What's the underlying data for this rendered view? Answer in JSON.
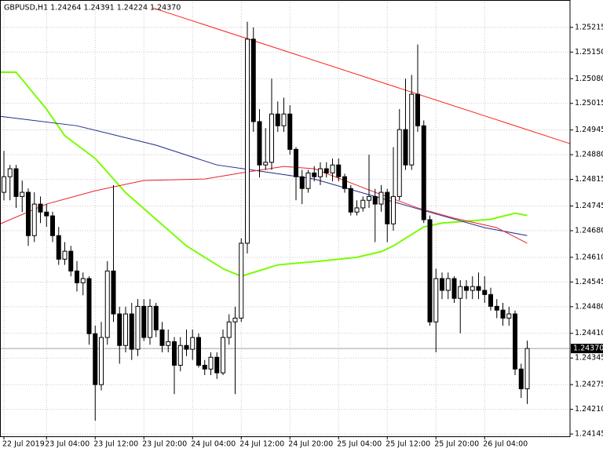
{
  "chart_data": {
    "type": "candlestick",
    "title": "GBPUSD,H1  1.24264 1.24391 1.24224 1.24370",
    "xlim": [
      -0.645,
      93.032
    ],
    "ylim": [
      1.24139,
      1.25287
    ],
    "grid": true,
    "bull_color": "#ffffff",
    "bear_color": "#000000",
    "xticks": [
      {
        "value": 0,
        "label": "22 Jul 2019"
      },
      {
        "value": 7,
        "label": "23 Jul 04:00"
      },
      {
        "value": 15,
        "label": "23 Jul 12:00"
      },
      {
        "value": 23,
        "label": "23 Jul 20:00"
      },
      {
        "value": 31,
        "label": "24 Jul 04:00"
      },
      {
        "value": 39,
        "label": "24 Jul 12:00"
      },
      {
        "value": 47,
        "label": "24 Jul 20:00"
      },
      {
        "value": 55,
        "label": "25 Jul 04:00"
      },
      {
        "value": 63,
        "label": "25 Jul 12:00"
      },
      {
        "value": 71,
        "label": "25 Jul 20:00"
      },
      {
        "value": 79,
        "label": "26 Jul 04:00"
      }
    ],
    "yticks": [
      1.25215,
      {
        "value": 1.2515,
        "label": "1.25150"
      },
      {
        "value": 1.2508,
        "label": "1.25080"
      },
      1.25015,
      1.24945,
      {
        "value": 1.2488,
        "label": "1.24880"
      },
      1.24815,
      1.24745,
      {
        "value": 1.2468,
        "label": "1.24680"
      },
      {
        "value": 1.2461,
        "label": "1.24610"
      },
      1.24545,
      {
        "value": 1.2448,
        "label": "1.24480"
      },
      {
        "value": 1.2441,
        "label": "1.24410"
      },
      1.24345,
      1.24275,
      {
        "value": 1.2421,
        "label": "1.24210"
      },
      1.24145
    ],
    "current_price": {
      "value": 1.2437,
      "label": "1.24370"
    },
    "ohlc": [
      [
        1.24781,
        1.2489,
        1.2476,
        1.24822
      ],
      [
        1.24822,
        1.24853,
        1.2476,
        1.24843
      ],
      [
        1.24843,
        1.24853,
        1.2474,
        1.2477
      ],
      [
        1.2477,
        1.24812,
        1.24729,
        1.24781
      ],
      [
        1.24781,
        1.24791,
        1.2464,
        1.24667
      ],
      [
        1.24667,
        1.24781,
        1.2465,
        1.2475
      ],
      [
        1.2475,
        1.2477,
        1.247,
        1.24729
      ],
      [
        1.24729,
        1.2475,
        1.2469,
        1.24719
      ],
      [
        1.24719,
        1.2473,
        1.2465,
        1.24667
      ],
      [
        1.24667,
        1.2469,
        1.2459,
        1.24605
      ],
      [
        1.24605,
        1.2465,
        1.2459,
        1.24626
      ],
      [
        1.24626,
        1.2464,
        1.2456,
        1.24574
      ],
      [
        1.24574,
        1.246,
        1.2452,
        1.24543
      ],
      [
        1.24543,
        1.2457,
        1.2451,
        1.24554
      ],
      [
        1.24554,
        1.2456,
        1.2438,
        1.24409
      ],
      [
        1.24409,
        1.2443,
        1.2418,
        1.24275
      ],
      [
        1.24275,
        1.2444,
        1.2426,
        1.24399
      ],
      [
        1.24399,
        1.246,
        1.2438,
        1.24574
      ],
      [
        1.24574,
        1.248,
        1.2444,
        1.24461
      ],
      [
        1.24461,
        1.2448,
        1.2433,
        1.24378
      ],
      [
        1.24378,
        1.2448,
        1.2436,
        1.24461
      ],
      [
        1.24461,
        1.2449,
        1.2434,
        1.24368
      ],
      [
        1.24368,
        1.245,
        1.2435,
        1.24481
      ],
      [
        1.24481,
        1.245,
        1.2439,
        1.24399
      ],
      [
        1.24399,
        1.245,
        1.2438,
        1.24481
      ],
      [
        1.24481,
        1.2449,
        1.244,
        1.24419
      ],
      [
        1.24419,
        1.2444,
        1.2436,
        1.24378
      ],
      [
        1.24378,
        1.2442,
        1.2436,
        1.24388
      ],
      [
        1.24388,
        1.244,
        1.2425,
        1.24326
      ],
      [
        1.24326,
        1.244,
        1.2431,
        1.24378
      ],
      [
        1.24378,
        1.2442,
        1.2435,
        1.24368
      ],
      [
        1.24368,
        1.2442,
        1.2434,
        1.24399
      ],
      [
        1.24399,
        1.2441,
        1.2432,
        1.24326
      ],
      [
        1.24326,
        1.2434,
        1.243,
        1.24316
      ],
      [
        1.24316,
        1.2436,
        1.243,
        1.24347
      ],
      [
        1.24347,
        1.2436,
        1.2429,
        1.24306
      ],
      [
        1.24306,
        1.2442,
        1.243,
        1.24399
      ],
      [
        1.24399,
        1.2446,
        1.2438,
        1.2444
      ],
      [
        1.2444,
        1.2448,
        1.2425,
        1.2445
      ],
      [
        1.2445,
        1.2466,
        1.2444,
        1.24647
      ],
      [
        1.24647,
        1.2523,
        1.2462,
        1.25184
      ],
      [
        1.25184,
        1.25215,
        1.2494,
        1.24967
      ],
      [
        1.24967,
        1.25,
        1.2482,
        1.24853
      ],
      [
        1.24853,
        1.2495,
        1.2484,
        1.2486
      ],
      [
        1.2486,
        1.2508,
        1.2484,
        1.24987
      ],
      [
        1.24987,
        1.2502,
        1.2494,
        1.24956
      ],
      [
        1.24956,
        1.2503,
        1.2494,
        1.24987
      ],
      [
        1.24987,
        1.2501,
        1.2488,
        1.24894
      ],
      [
        1.24894,
        1.249,
        1.2476,
        1.24822
      ],
      [
        1.24822,
        1.2484,
        1.2475,
        1.24791
      ],
      [
        1.24791,
        1.2484,
        1.2478,
        1.24832
      ],
      [
        1.24832,
        1.2485,
        1.2481,
        1.24822
      ],
      [
        1.24822,
        1.2486,
        1.248,
        1.24843
      ],
      [
        1.24843,
        1.2486,
        1.2482,
        1.24832
      ],
      [
        1.24832,
        1.2487,
        1.2481,
        1.24853
      ],
      [
        1.24853,
        1.2487,
        1.2481,
        1.24822
      ],
      [
        1.24822,
        1.2483,
        1.2478,
        1.24791
      ],
      [
        1.24791,
        1.248,
        1.2472,
        1.24729
      ],
      [
        1.24729,
        1.2476,
        1.2472,
        1.2474
      ],
      [
        1.2474,
        1.2477,
        1.2473,
        1.2476
      ],
      [
        1.2476,
        1.2488,
        1.2474,
        1.2477
      ],
      [
        1.2477,
        1.2479,
        1.2465,
        1.2475
      ],
      [
        1.2475,
        1.248,
        1.2473,
        1.24781
      ],
      [
        1.24781,
        1.2479,
        1.2465,
        1.24698
      ],
      [
        1.24698,
        1.249,
        1.2468,
        1.2477
      ],
      [
        1.2477,
        1.25,
        1.2476,
        1.24946
      ],
      [
        1.24946,
        1.2508,
        1.2484,
        1.24853
      ],
      [
        1.24853,
        1.2509,
        1.2484,
        1.25039
      ],
      [
        1.25039,
        1.2517,
        1.2494,
        1.24956
      ],
      [
        1.24956,
        1.2497,
        1.247,
        1.24709
      ],
      [
        1.24709,
        1.2472,
        1.2443,
        1.2444
      ],
      [
        1.2444,
        1.2458,
        1.2436,
        1.24554
      ],
      [
        1.24554,
        1.2457,
        1.245,
        1.24523
      ],
      [
        1.24523,
        1.2457,
        1.245,
        1.24554
      ],
      [
        1.24554,
        1.2456,
        1.2449,
        1.24502
      ],
      [
        1.24502,
        1.2455,
        1.2441,
        1.24533
      ],
      [
        1.24533,
        1.2455,
        1.245,
        1.24523
      ],
      [
        1.24523,
        1.2456,
        1.245,
        1.24533
      ],
      [
        1.24533,
        1.2457,
        1.245,
        1.24523
      ],
      [
        1.24523,
        1.2456,
        1.2449,
        1.24512
      ],
      [
        1.24512,
        1.2453,
        1.2447,
        1.24481
      ],
      [
        1.24481,
        1.245,
        1.2445,
        1.24471
      ],
      [
        1.24471,
        1.2449,
        1.2443,
        1.2445
      ],
      [
        1.2445,
        1.2448,
        1.2443,
        1.24461
      ],
      [
        1.24461,
        1.2447,
        1.243,
        1.24316
      ],
      [
        1.24316,
        1.2433,
        1.2424,
        1.24264
      ],
      [
        1.24264,
        1.24391,
        1.24224,
        1.2437
      ]
    ],
    "lines": [
      {
        "color": "#7cfc00",
        "width": 2,
        "x": [
          -0.6,
          2,
          7,
          10,
          15,
          20,
          25,
          30,
          36,
          39,
          41,
          45,
          52,
          58,
          62,
          64,
          67,
          69,
          72,
          80,
          84,
          86
        ],
        "values": [
          1.25097,
          1.25097,
          1.25,
          1.2493,
          1.2487,
          1.2478,
          1.2471,
          1.2464,
          1.2458,
          1.2456,
          1.2457,
          1.2459,
          1.246,
          1.2461,
          1.24625,
          1.2464,
          1.2467,
          1.2469,
          1.247,
          1.2471,
          1.24726,
          1.2472
        ]
      },
      {
        "color": "#1e2a8c",
        "width": 1,
        "x": [
          -0.6,
          12,
          25,
          35,
          42,
          51,
          61,
          69,
          79,
          86
        ],
        "values": [
          1.24981,
          1.24956,
          1.24905,
          1.24853,
          1.24837,
          1.24816,
          1.2477,
          1.24733,
          1.24688,
          1.24667
        ]
      },
      {
        "color": "#e8242b",
        "width": 1,
        "x": [
          -0.6,
          7,
          15,
          23,
          33,
          39,
          46,
          51,
          56,
          61,
          68,
          74,
          81,
          86
        ],
        "values": [
          1.24698,
          1.2475,
          1.24785,
          1.24812,
          1.24816,
          1.24832,
          1.24849,
          1.24843,
          1.24812,
          1.24781,
          1.2474,
          1.24713,
          1.24688,
          1.24647
        ]
      },
      {
        "color": "#ff2020",
        "width": 1,
        "x": [
          24.5,
          93.032
        ],
        "values": [
          1.25266,
          1.24909
        ]
      }
    ]
  }
}
